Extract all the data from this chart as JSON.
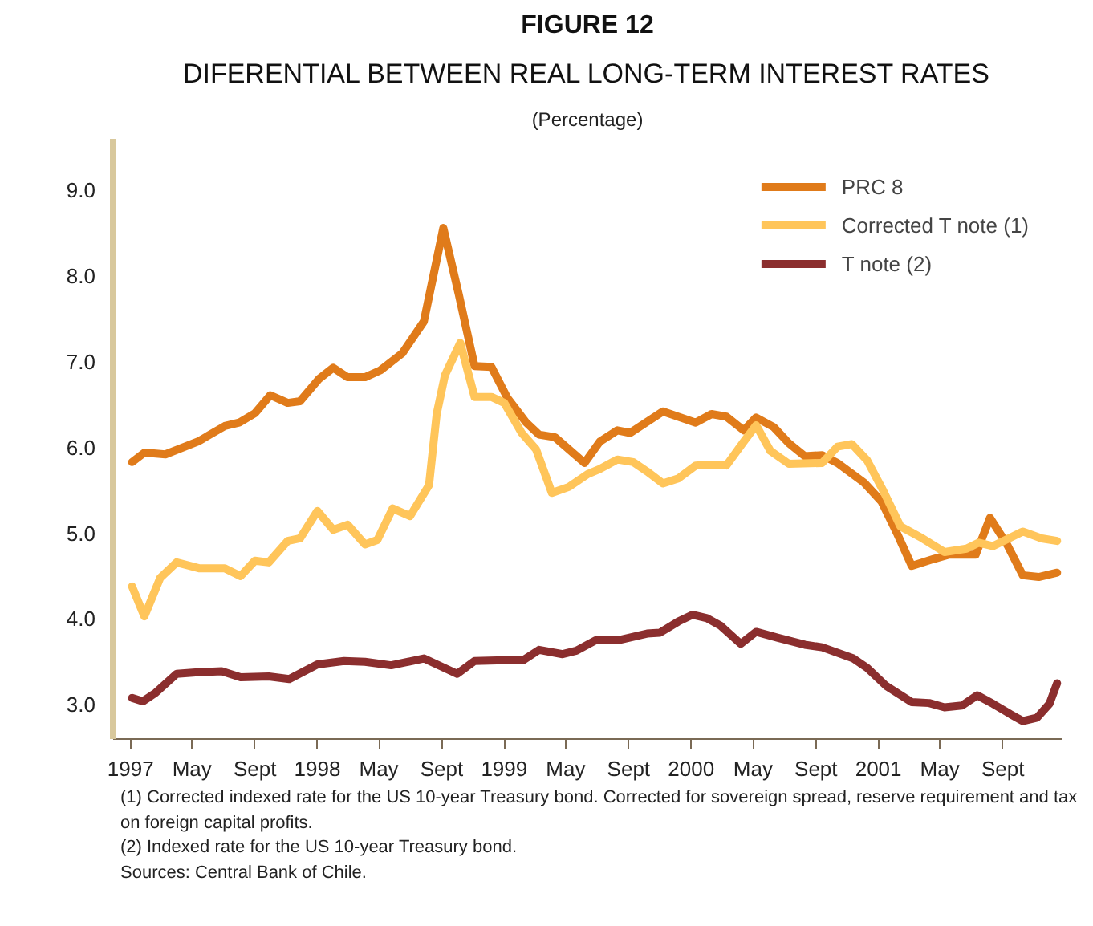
{
  "chart_data": {
    "type": "line",
    "title": "FIGURE 12",
    "subtitle": "DIFERENTIAL BETWEEN REAL LONG-TERM INTEREST RATES",
    "ylabel": "(Percentage)",
    "annotations": [
      "(1) Corrected indexed rate for the US 10-year Treasury bond. Corrected for sovereign spread, reserve requirement and tax on foreign capital profits.",
      "(2) Indexed rate for the US 10-year Treasury bond.",
      "Sources: Central Bank of Chile."
    ],
    "xlim": [
      "1996-11-28",
      "2001-12-25"
    ],
    "xticks": [
      "1997",
      {
        "value": "1997-05",
        "label": "May"
      },
      {
        "value": "1997-09",
        "label": "Sept"
      },
      "1998",
      {
        "value": "1998-05",
        "label": "May"
      },
      {
        "value": "1998-09",
        "label": "Sept"
      },
      "1999",
      {
        "value": "1999-05",
        "label": "May"
      },
      {
        "value": "1999-09",
        "label": "Sept"
      },
      "2000",
      {
        "value": "2000-05",
        "label": "May"
      },
      {
        "value": "2000-09",
        "label": "Sept"
      },
      "2001",
      {
        "value": "2001-05",
        "label": "May"
      },
      {
        "value": "2001-09",
        "label": "Sept"
      }
    ],
    "ylim": [
      2.6,
      9.6
    ],
    "yticks": [
      {
        "value": 3,
        "label": "3.0"
      },
      {
        "value": 4,
        "label": "4.0"
      },
      {
        "value": 5,
        "label": "5.0"
      },
      {
        "value": 6,
        "label": "6.0"
      },
      {
        "value": 7,
        "label": "7.0"
      },
      {
        "value": 8,
        "label": "8.0"
      },
      {
        "value": 9,
        "label": "9.0"
      }
    ],
    "grid": false,
    "legend": "top right",
    "series": [
      {
        "name": "PRC 8",
        "color": "#e07b1a",
        "x": [
          "1997-01-04",
          "1997-01-28",
          "1997-03-10",
          "1997-05-13",
          "1997-07-04",
          "1997-08-01",
          "1997-09-01",
          "1997-10-01",
          "1997-11-04",
          "1997-11-28",
          "1998-01-04",
          "1998-02-01",
          "1998-03-01",
          "1998-04-04",
          "1998-05-04",
          "1998-06-16",
          "1998-07-28",
          "1998-09-04",
          "1998-10-04",
          "1998-11-04",
          "1998-12-07",
          "1999-01-07",
          "1999-02-13",
          "1999-03-10",
          "1999-04-10",
          "1999-06-07",
          "1999-07-07",
          "1999-08-10",
          "1999-09-04",
          "1999-11-07",
          "2000-01-10",
          "2000-02-10",
          "2000-03-10",
          "2000-04-13",
          "2000-05-07",
          "2000-06-10",
          "2000-07-10",
          "2000-08-10",
          "2000-09-13",
          "2000-10-13",
          "2000-12-04",
          "2001-01-07",
          "2001-02-07",
          "2001-03-07",
          "2001-04-19",
          "2001-05-19",
          "2001-07-10",
          "2001-08-07",
          "2001-09-10",
          "2001-10-10",
          "2001-11-10",
          "2001-12-16"
        ],
        "values": [
          5.83,
          5.94,
          5.92,
          6.07,
          6.25,
          6.29,
          6.4,
          6.61,
          6.52,
          6.54,
          6.8,
          6.93,
          6.82,
          6.82,
          6.9,
          7.1,
          7.47,
          8.56,
          7.79,
          6.95,
          6.94,
          6.58,
          6.29,
          6.15,
          6.12,
          5.82,
          6.07,
          6.2,
          6.17,
          6.42,
          6.29,
          6.39,
          6.36,
          6.2,
          6.35,
          6.24,
          6.05,
          5.9,
          5.91,
          5.82,
          5.59,
          5.37,
          4.99,
          4.62,
          4.7,
          4.75,
          4.75,
          5.18,
          4.86,
          4.51,
          4.49,
          4.54
        ]
      },
      {
        "name": "Corrected T note (1)",
        "color": "#ffc55a",
        "x": [
          "1997-01-04",
          "1997-01-28",
          "1997-02-28",
          "1997-04-01",
          "1997-05-16",
          "1997-07-04",
          "1997-08-04",
          "1997-09-01",
          "1997-09-28",
          "1997-11-04",
          "1997-11-28",
          "1998-01-01",
          "1998-02-01",
          "1998-03-01",
          "1998-04-04",
          "1998-04-28",
          "1998-05-28",
          "1998-07-01",
          "1998-08-07",
          "1998-08-22",
          "1998-09-07",
          "1998-10-07",
          "1998-11-04",
          "1998-12-07",
          "1999-01-01",
          "1999-02-04",
          "1999-03-04",
          "1999-04-04",
          "1999-05-07",
          "1999-06-13",
          "1999-07-07",
          "1999-08-10",
          "1999-09-10",
          "1999-10-07",
          "1999-11-07",
          "1999-12-07",
          "2000-01-10",
          "2000-02-04",
          "2000-03-10",
          "2000-04-13",
          "2000-05-07",
          "2000-06-04",
          "2000-07-10",
          "2000-09-13",
          "2000-10-13",
          "2000-11-10",
          "2000-12-10",
          "2001-01-10",
          "2001-02-13",
          "2001-03-28",
          "2001-05-10",
          "2001-06-22",
          "2001-07-16",
          "2001-08-13",
          "2001-10-10",
          "2001-11-16",
          "2001-12-16"
        ],
        "values": [
          4.38,
          4.03,
          4.48,
          4.66,
          4.59,
          4.59,
          4.5,
          4.68,
          4.66,
          4.91,
          4.94,
          5.26,
          5.04,
          5.1,
          4.87,
          4.92,
          5.29,
          5.2,
          5.56,
          6.39,
          6.84,
          7.22,
          6.59,
          6.59,
          6.52,
          6.17,
          5.98,
          5.47,
          5.54,
          5.69,
          5.75,
          5.86,
          5.83,
          5.72,
          5.58,
          5.64,
          5.79,
          5.8,
          5.79,
          6.07,
          6.26,
          5.96,
          5.81,
          5.82,
          6.01,
          6.04,
          5.85,
          5.5,
          5.08,
          4.94,
          4.78,
          4.82,
          4.89,
          4.85,
          5.02,
          4.94,
          4.91
        ]
      },
      {
        "name": "T note (2)",
        "color": "#8b2e2e",
        "x": [
          "1997-01-04",
          "1997-01-25",
          "1997-02-19",
          "1997-04-01",
          "1997-05-13",
          "1997-06-28",
          "1997-08-04",
          "1997-09-28",
          "1997-11-07",
          "1998-01-01",
          "1998-02-22",
          "1998-04-04",
          "1998-05-25",
          "1998-07-28",
          "1998-10-01",
          "1998-11-04",
          "1999-01-01",
          "1999-02-07",
          "1999-03-10",
          "1999-04-25",
          "1999-05-22",
          "1999-06-28",
          "1999-08-10",
          "1999-10-07",
          "1999-11-01",
          "1999-12-07",
          "2000-01-04",
          "2000-02-01",
          "2000-02-28",
          "2000-04-07",
          "2000-05-07",
          "2000-06-19",
          "2000-08-10",
          "2000-09-13",
          "2000-11-13",
          "2000-12-10",
          "2001-01-16",
          "2001-03-07",
          "2001-04-10",
          "2001-05-10",
          "2001-06-13",
          "2001-07-13",
          "2001-08-13",
          "2001-09-16",
          "2001-10-10",
          "2001-11-07",
          "2001-12-01",
          "2001-12-16"
        ],
        "values": [
          3.08,
          3.04,
          3.14,
          3.36,
          3.38,
          3.39,
          3.32,
          3.33,
          3.3,
          3.47,
          3.51,
          3.5,
          3.46,
          3.54,
          3.36,
          3.51,
          3.52,
          3.52,
          3.64,
          3.59,
          3.63,
          3.75,
          3.75,
          3.83,
          3.84,
          3.97,
          4.05,
          4.01,
          3.92,
          3.71,
          3.85,
          3.78,
          3.7,
          3.67,
          3.54,
          3.43,
          3.22,
          3.03,
          3.02,
          2.97,
          2.99,
          3.11,
          3.01,
          2.89,
          2.81,
          2.85,
          3.01,
          3.25
        ]
      }
    ]
  }
}
